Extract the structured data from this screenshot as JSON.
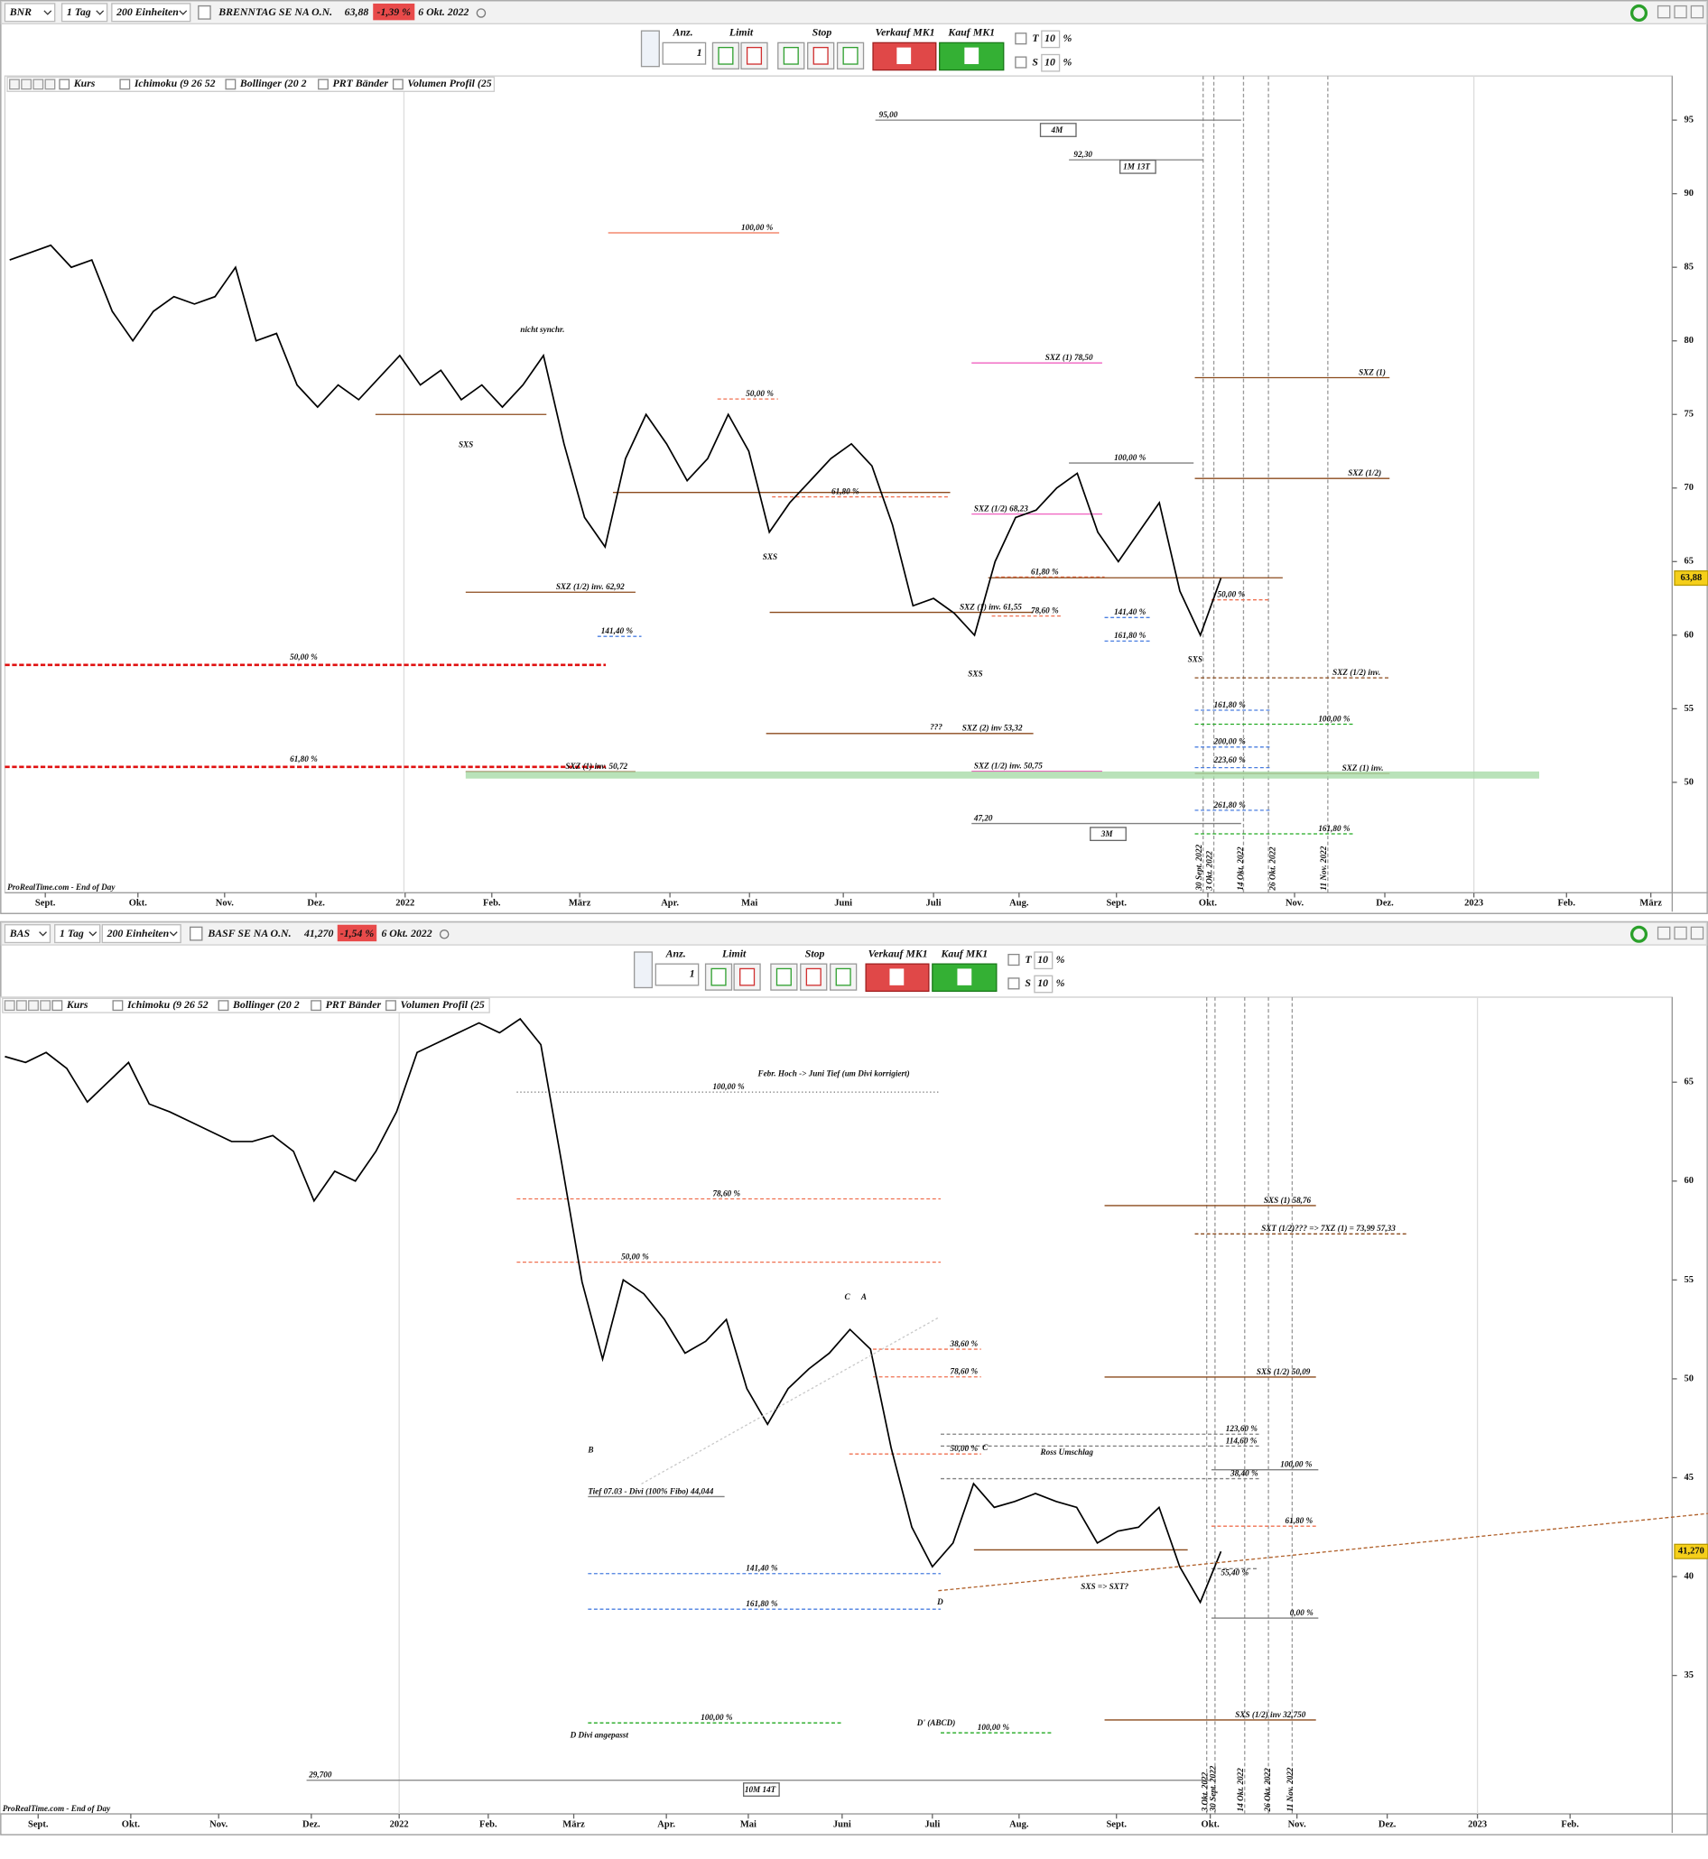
{
  "panels": [
    {
      "toolbar": {
        "symbol": "BNR",
        "period": "1 Tag",
        "units": "200 Einheiten",
        "name": "BRENNTAG SE NA O.N.",
        "price": "63,88",
        "change": "-1,39 %",
        "date": "6 Okt. 2022"
      },
      "order_bar": {
        "qty_label": "Anz.",
        "qty": "1",
        "limit": "Limit",
        "stop": "Stop",
        "sell": "Verkauf MK1",
        "buy": "Kauf MK1",
        "t": "T",
        "t_value": "10",
        "s": "S",
        "s_value": "10",
        "percent": "%"
      },
      "indicators": [
        "Kurs",
        "Ichimoku (9 26 52",
        "Bollinger (20 2",
        "PRT Bänder",
        "Volumen Profil (25"
      ],
      "chart": {
        "type": "line",
        "color": "#000000",
        "values": [
          85.5,
          86,
          86.5,
          85,
          85.5,
          82,
          80,
          82,
          83,
          82.5,
          83,
          85,
          80,
          80.5,
          77,
          75.5,
          77,
          76,
          77.5,
          79,
          77,
          78,
          76,
          77,
          75.5,
          77,
          79,
          73,
          68,
          66,
          72,
          75,
          73,
          70.5,
          72,
          75,
          72.5,
          67,
          69,
          70.5,
          72,
          73,
          71.5,
          67.5,
          62,
          62.5,
          61.5,
          60,
          65,
          68,
          68.5,
          70,
          71,
          67,
          65,
          67,
          69,
          63,
          60,
          63.88
        ],
        "ylim": [
          42.5,
          98
        ],
        "yticks": [
          50,
          55,
          60,
          65,
          70,
          75,
          80,
          85,
          90,
          95
        ],
        "x_labels": [
          "Sept.",
          "Okt.",
          "Nov.",
          "Dez.",
          "2022",
          "Feb.",
          "März",
          "Apr.",
          "Mai",
          "Juni",
          "Juli",
          "Aug.",
          "Sept.",
          "Okt.",
          "Nov.",
          "Dez.",
          "2023",
          "Feb.",
          "März"
        ],
        "annotations": [
          {
            "label": "95,00",
            "level": 95,
            "color": "#808080",
            "style": "solid"
          },
          {
            "label": "92,30",
            "level": 92.3,
            "color": "#808080",
            "style": "solid"
          },
          {
            "label": "100,00 %",
            "level": 87.34,
            "color": "#f07050",
            "style": "solid"
          },
          {
            "label": "SXZ (1) 78,50",
            "level": 78.5,
            "color": "#f060c0",
            "style": "solid"
          },
          {
            "label": "SXZ (1)",
            "level": 77.5,
            "color": "#8b4a1c",
            "style": "solid"
          },
          {
            "label": "50,00 %",
            "level": 76.05,
            "color": "#f07050",
            "style": "dashed"
          },
          {
            "label": "SXS",
            "level": 75,
            "color": "#8b4a1c",
            "style": "solid"
          },
          {
            "label": "100,00 %",
            "level": 71.7,
            "color": "#808080",
            "style": "solid"
          },
          {
            "label": "SXZ (1/2)",
            "level": 70.65,
            "color": "#8b4a1c",
            "style": "solid"
          },
          {
            "label": "SXS",
            "level": 69.7,
            "color": "#8b4a1c",
            "style": "solid"
          },
          {
            "label": "61,80 %",
            "level": 69.4,
            "color": "#f07050",
            "style": "dashed"
          },
          {
            "label": "SXZ (1/2) 68,23",
            "level": 68.23,
            "color": "#f060c0",
            "style": "solid"
          },
          {
            "label": "61,80 %",
            "level": 63.95,
            "color": "#f07050",
            "style": "dashed"
          },
          {
            "level": 63.9,
            "color": "#8b4a1c",
            "style": "solid"
          },
          {
            "label": "SXZ (1/2) inv. 62,92",
            "level": 62.92,
            "color": "#8b4a1c",
            "style": "solid"
          },
          {
            "label": "50,00 %",
            "level": 62.4,
            "color": "#f07050",
            "style": "dashed"
          },
          {
            "label": "SXZ (1) inv. 61,55",
            "level": 61.55,
            "color": "#8b4a1c",
            "style": "solid"
          },
          {
            "label": "78,60 %",
            "level": 61.3,
            "color": "#f07050",
            "style": "dashed"
          },
          {
            "label": "141,40 %",
            "level": 61.2,
            "color": "#4a7ee0",
            "style": "dashed"
          },
          {
            "label": "161,80 %",
            "level": 59.6,
            "color": "#4a7ee0",
            "style": "dashed"
          },
          {
            "label": "141,40 %",
            "level": 59.92,
            "color": "#4a7ee0",
            "style": "dashed"
          },
          {
            "label": "50,00 %",
            "level": 57.98,
            "color": "#e01010",
            "style": "thick-dashed"
          },
          {
            "label": "SXZ (1/2) inv.",
            "level": 57.1,
            "color": "#8b4a1c",
            "style": "dashed"
          },
          {
            "label": "161,80 %",
            "level": 54.9,
            "color": "#4a7ee0",
            "style": "dashed"
          },
          {
            "label": "100,00 %",
            "level": 53.95,
            "color": "#22aa22",
            "style": "dashed"
          },
          {
            "label": "SXZ (2) inv 53,32",
            "level": 53.32,
            "color": "#8b4a1c",
            "style": "solid"
          },
          {
            "label": "200,00 %",
            "level": 52.4,
            "color": "#4a7ee0",
            "style": "dashed"
          },
          {
            "label": "61,80 %",
            "level": 51.05,
            "color": "#e01010",
            "style": "thick-dashed"
          },
          {
            "label": "223,60 %",
            "level": 51,
            "color": "#4a7ee0",
            "style": "dashed"
          },
          {
            "label": "SXZ (1) inv. 50,72",
            "level": 50.72,
            "color": "#8b4a1c",
            "style": "solid"
          },
          {
            "label": "SXZ (1/2) inv. 50,75",
            "level": 50.75,
            "color": "#f060c0",
            "style": "solid"
          },
          {
            "label": "SXZ (1) inv.",
            "level": 50.6,
            "color": "#8b4a1c",
            "style": "solid"
          },
          {
            "level": 50.5,
            "color": "#a8dca8",
            "style": "band"
          },
          {
            "label": "261,80 %",
            "level": 48.1,
            "color": "#4a7ee0",
            "style": "dashed"
          },
          {
            "label": "47,20",
            "level": 47.2,
            "color": "#808080",
            "style": "solid"
          },
          {
            "label": "161,80 %",
            "level": 46.5,
            "color": "#22aa22",
            "style": "dashed"
          }
        ],
        "notes": [
          {
            "label": "nicht synchr.",
            "color": "#222222"
          },
          {
            "label": "SXS",
            "color": "#8b4a1c"
          },
          {
            "label": "SXS",
            "color": "#f060c0"
          },
          {
            "label": "???",
            "color": "#222222"
          },
          {
            "label": "4M",
            "color": "#555555"
          },
          {
            "label": "1M 13T",
            "color": "#555555"
          },
          {
            "label": "3M",
            "color": "#555555"
          }
        ],
        "date_marks": [
          "30 Sept. 2022",
          "3 Okt. 2022",
          "14 Okt. 2022",
          "26 Okt. 2022",
          "11 Nov. 2022"
        ],
        "footer": "ProRealTime.com - End of Day"
      }
    },
    {
      "toolbar": {
        "symbol": "BAS",
        "period": "1 Tag",
        "units": "200 Einheiten",
        "name": "BASF SE NA O.N.",
        "price": "41,270",
        "change": "-1,54 %",
        "date": "6 Okt. 2022"
      },
      "order_bar": {
        "qty_label": "Anz.",
        "qty": "1",
        "limit": "Limit",
        "stop": "Stop",
        "sell": "Verkauf MK1",
        "buy": "Kauf MK1",
        "t": "T",
        "t_value": "10",
        "s": "S",
        "s_value": "10",
        "percent": "%"
      },
      "indicators": [
        "Kurs",
        "Ichimoku (9 26 52",
        "Bollinger (20 2",
        "PRT Bänder",
        "Volumen Profil (25"
      ],
      "chart": {
        "type": "line",
        "color": "#000000",
        "values": [
          66.3,
          66,
          66.5,
          65.7,
          64,
          65,
          66,
          63.9,
          63.5,
          63,
          62.5,
          62,
          62,
          62.3,
          61.5,
          59,
          60.5,
          60,
          61.5,
          63.5,
          66.5,
          67,
          67.5,
          68,
          67.5,
          68.2,
          66.9,
          61,
          54.9,
          51,
          55,
          54.3,
          53,
          51.3,
          51.9,
          53,
          49.5,
          47.7,
          49.5,
          50.5,
          51.3,
          52.5,
          51.5,
          46.5,
          42.5,
          40.5,
          41.7,
          44.7,
          43.5,
          43.8,
          44.2,
          43.8,
          43.5,
          41.7,
          42.3,
          42.5,
          43.5,
          40.5,
          38.7,
          41.27
        ],
        "ylim": [
          28,
          69.3
        ],
        "yticks": [
          35,
          40,
          45,
          50,
          55,
          60,
          65
        ],
        "x_labels": [
          "Sept.",
          "Okt.",
          "Nov.",
          "Dez.",
          "2022",
          "Feb.",
          "März",
          "Apr.",
          "Mai",
          "Juni",
          "Juli",
          "Aug.",
          "Sept.",
          "Okt.",
          "Nov.",
          "Dez.",
          "2023",
          "Feb."
        ],
        "annotations": [
          {
            "label": "100,00 %",
            "level": 64.5,
            "color": "#808080",
            "style": "dotted"
          },
          {
            "label": "78,60 %",
            "level": 59.1,
            "color": "#f07050",
            "style": "dashed"
          },
          {
            "label": "SXS (1) 58,76",
            "level": 58.76,
            "color": "#8b4a1c",
            "style": "solid"
          },
          {
            "label": "SXT (1/2)??? => 7XZ (1) = 73,99 57,33",
            "level": 57.33,
            "color": "#8b4a1c",
            "style": "dashed"
          },
          {
            "label": "50,00 %",
            "level": 55.9,
            "color": "#f07050",
            "style": "dashed"
          },
          {
            "label": "38,60 %",
            "level": 51.5,
            "color": "#f07050",
            "style": "dashed"
          },
          {
            "label": "78,60 %",
            "level": 50.1,
            "color": "#f07050",
            "style": "dashed"
          },
          {
            "label": "SXS (1/2) 50,09",
            "level": 50.09,
            "color": "#8b4a1c",
            "style": "solid"
          },
          {
            "label": "123,60 %",
            "level": 47.2,
            "color": "#808080",
            "style": "dashed"
          },
          {
            "label": "114,60 %",
            "level": 46.6,
            "color": "#808080",
            "style": "dashed"
          },
          {
            "label": "50,00 %",
            "level": 46.2,
            "color": "#f07050",
            "style": "dashed"
          },
          {
            "label": "100,00 %",
            "level": 45.4,
            "color": "#808080",
            "style": "solid"
          },
          {
            "label": "38,40 %",
            "level": 44.95,
            "color": "#808080",
            "style": "dashed"
          },
          {
            "label": "Tief 07.03 - Divi (100% Fibo) 44,044",
            "level": 44.044,
            "color": "#808080",
            "style": "solid"
          },
          {
            "label": "61,80 %",
            "level": 42.55,
            "color": "#f07050",
            "style": "dashed"
          },
          {
            "level": 41.35,
            "color": "#8b4a1c",
            "style": "solid"
          },
          {
            "label": "55,40 %",
            "level": 40.4,
            "color": "#808080",
            "style": "dashed"
          },
          {
            "label": "141,40 %",
            "level": 40.15,
            "color": "#4a7ee0",
            "style": "dashed"
          },
          {
            "label": "161,80 %",
            "level": 38.35,
            "color": "#4a7ee0",
            "style": "dashed"
          },
          {
            "label": "0,00 %",
            "level": 37.9,
            "color": "#808080",
            "style": "solid"
          },
          {
            "label": "SXS (1/2) inv 32,750",
            "level": 32.75,
            "color": "#8b4a1c",
            "style": "solid"
          },
          {
            "label": "100,00 %",
            "level": 32.6,
            "color": "#22aa22",
            "style": "dashed"
          },
          {
            "label": "100,00 %",
            "level": 32.1,
            "color": "#22aa22",
            "style": "dashed"
          },
          {
            "label": "29,700",
            "level": 29.7,
            "color": "#808080",
            "style": "solid"
          }
        ],
        "notes": [
          {
            "label": "Febr. Hoch -> Juni Tief (um Divi korrigiert)",
            "color": "#333333"
          },
          {
            "label": "C",
            "color": "#e01010"
          },
          {
            "label": "A",
            "color": "#7a2ab0"
          },
          {
            "label": "B",
            "color": "#e01010"
          },
          {
            "label": "C",
            "color": "#7a2ab0"
          },
          {
            "label": "Ross Umschlag",
            "color": "#333333"
          },
          {
            "label": "SXS => SXT?",
            "color": "#c0501c"
          },
          {
            "label": "D",
            "color": "#7a2ab0"
          },
          {
            "label": "D' (ABCD)",
            "color": "#7a2ab0"
          },
          {
            "label": "D Divi angepasst",
            "color": "#e01010"
          },
          {
            "label": "10M 14T",
            "color": "#555555"
          }
        ],
        "date_marks": [
          "3 Okt. 2022",
          "30 Sept. 2022",
          "14 Okt. 2022",
          "26 Okt. 2022",
          "11 Nov. 2022"
        ],
        "footer": "ProRealTime.com - End of Day"
      }
    }
  ]
}
